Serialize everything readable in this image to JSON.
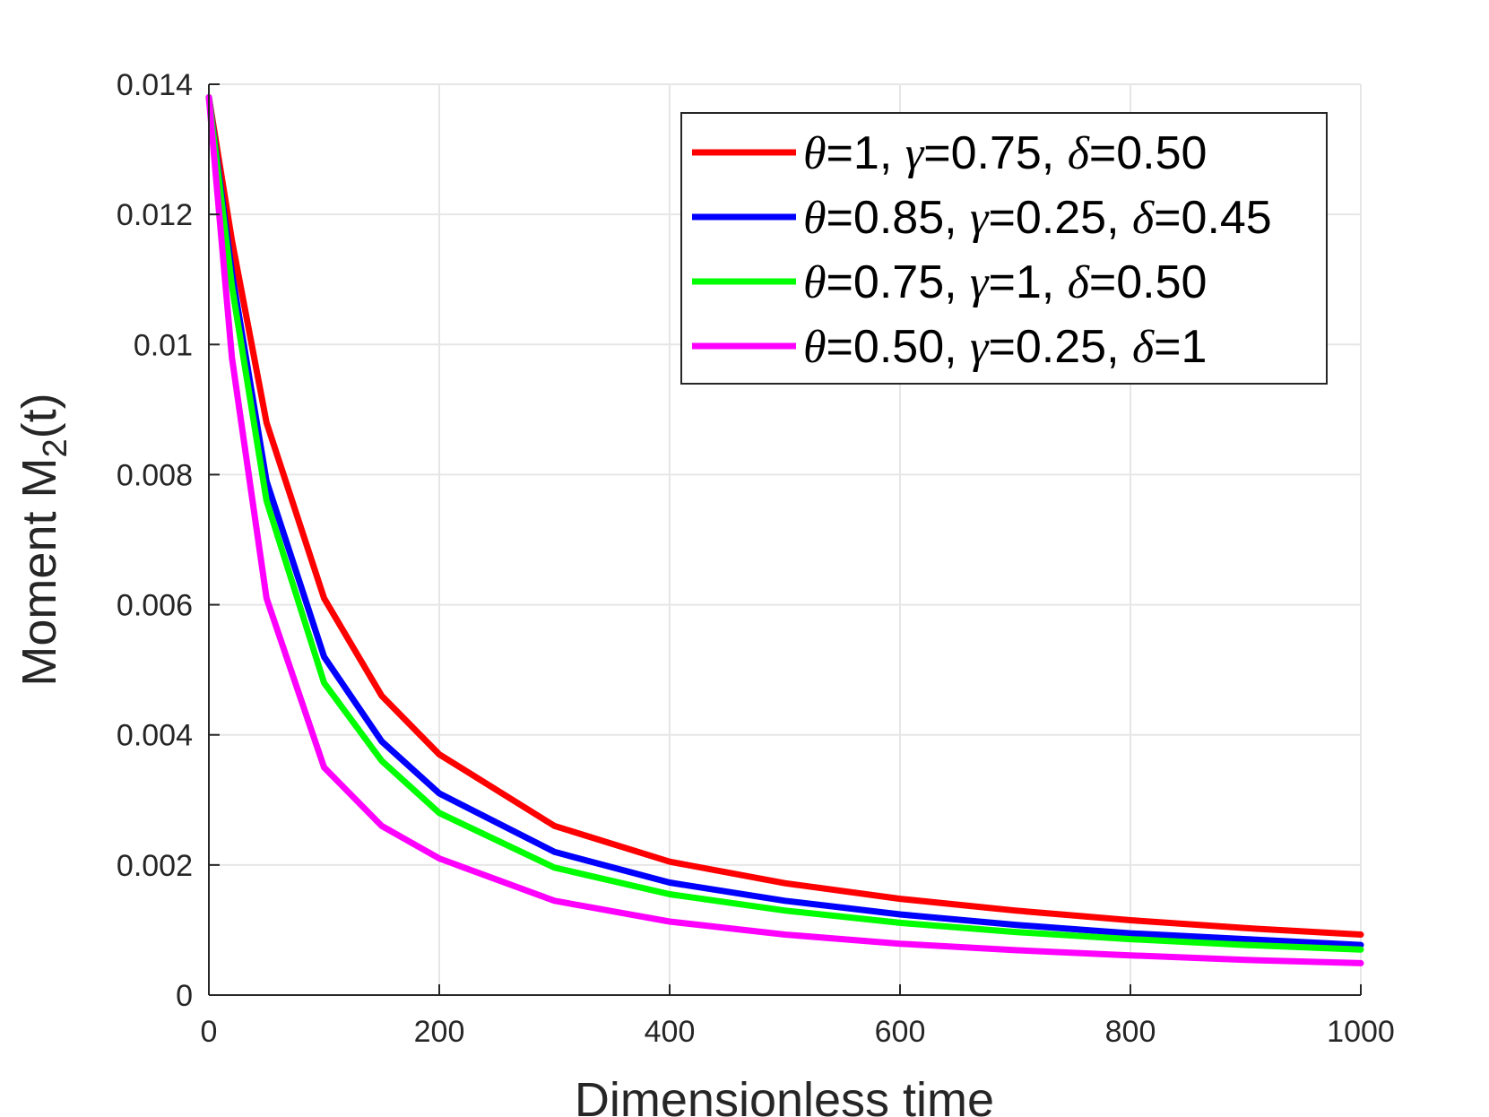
{
  "chart_data": {
    "type": "line",
    "xlabel": "Dimensionless time",
    "ylabel_main": "Moment M",
    "ylabel_sub": "2",
    "ylabel_tail": "(t)",
    "xlim": [
      0,
      1000
    ],
    "ylim": [
      0,
      0.014
    ],
    "xticks": [
      0,
      200,
      400,
      600,
      800,
      1000
    ],
    "xtick_labels": [
      "0",
      "200",
      "400",
      "600",
      "800",
      "1000"
    ],
    "yticks": [
      0,
      0.002,
      0.004,
      0.006,
      0.008,
      0.01,
      0.012,
      0.014
    ],
    "ytick_labels": [
      "0",
      "0.002",
      "0.004",
      "0.006",
      "0.008",
      "0.01",
      "0.012",
      "0.014"
    ],
    "grid": true,
    "legend_position": "top-right",
    "x": [
      0,
      20,
      50,
      100,
      150,
      200,
      300,
      400,
      500,
      600,
      700,
      800,
      900,
      1000
    ],
    "series": [
      {
        "name": "θ=1, γ=0.75, δ=0.50",
        "name_parts": [
          [
            "θ",
            "=1, "
          ],
          [
            "γ",
            "=0.75, "
          ],
          [
            "δ",
            "=0.50"
          ]
        ],
        "color": "#ff0000",
        "values": [
          0.0138,
          0.0116,
          0.0088,
          0.0061,
          0.0046,
          0.0037,
          0.0026,
          0.00205,
          0.00172,
          0.00148,
          0.0013,
          0.00115,
          0.00103,
          0.00093
        ]
      },
      {
        "name": "θ=0.85, γ=0.25, δ=0.45",
        "name_parts": [
          [
            "θ",
            "=0.85, "
          ],
          [
            "γ",
            "=0.25, "
          ],
          [
            "δ",
            "=0.45"
          ]
        ],
        "color": "#0000ff",
        "values": [
          0.0138,
          0.0111,
          0.0079,
          0.0052,
          0.0039,
          0.0031,
          0.0022,
          0.00173,
          0.00145,
          0.00124,
          0.00108,
          0.00095,
          0.00086,
          0.00077
        ]
      },
      {
        "name": "θ=0.75, γ=1, δ=0.50",
        "name_parts": [
          [
            "θ",
            "=0.75, "
          ],
          [
            "γ",
            "=1, "
          ],
          [
            "δ",
            "=0.50"
          ]
        ],
        "color": "#00ff00",
        "values": [
          0.0138,
          0.0109,
          0.0076,
          0.0048,
          0.0036,
          0.0028,
          0.00196,
          0.00155,
          0.0013,
          0.00111,
          0.00097,
          0.00086,
          0.00077,
          0.0007
        ]
      },
      {
        "name": "θ=0.50, γ=0.25, δ=1",
        "name_parts": [
          [
            "θ",
            "=0.50, "
          ],
          [
            "γ",
            "=0.25, "
          ],
          [
            "δ",
            "=1"
          ]
        ],
        "color": "#ff00ff",
        "values": [
          0.0138,
          0.0098,
          0.0061,
          0.0035,
          0.0026,
          0.0021,
          0.00145,
          0.00113,
          0.00093,
          0.00079,
          0.00069,
          0.00061,
          0.00054,
          0.00049
        ]
      }
    ]
  }
}
